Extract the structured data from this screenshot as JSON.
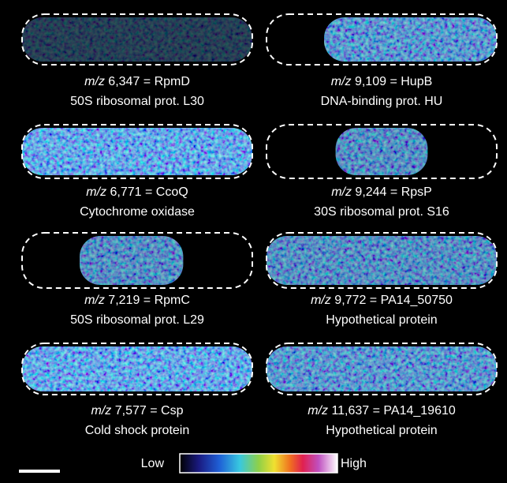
{
  "panels": [
    {
      "mz": "m/z",
      "mass": " 6,347 = RpmD",
      "description": "50S ribosomal prot. L30"
    },
    {
      "mz": "m/z",
      "mass": " 9,109 = HupB",
      "description": "DNA-binding prot. HU"
    },
    {
      "mz": "m/z",
      "mass": " 6,771 = CcoQ",
      "description": "Cytochrome oxidase"
    },
    {
      "mz": "m/z",
      "mass": " 9,244 = RpsP",
      "description": "30S ribosomal prot. S16"
    },
    {
      "mz": "m/z",
      "mass": " 7,219 = RpmC",
      "description": "50S ribosomal prot. L29"
    },
    {
      "mz": "m/z",
      "mass": " 9,772 = PA14_50750",
      "description": "Hypothetical protein"
    },
    {
      "mz": "m/z",
      "mass": " 7,577 = Csp",
      "description": "Cold shock protein"
    },
    {
      "mz": "m/z",
      "mass": " 11,637 = PA14_19610",
      "description": "Hypothetical protein"
    }
  ],
  "colorbar": {
    "low": "Low",
    "high": "High"
  }
}
